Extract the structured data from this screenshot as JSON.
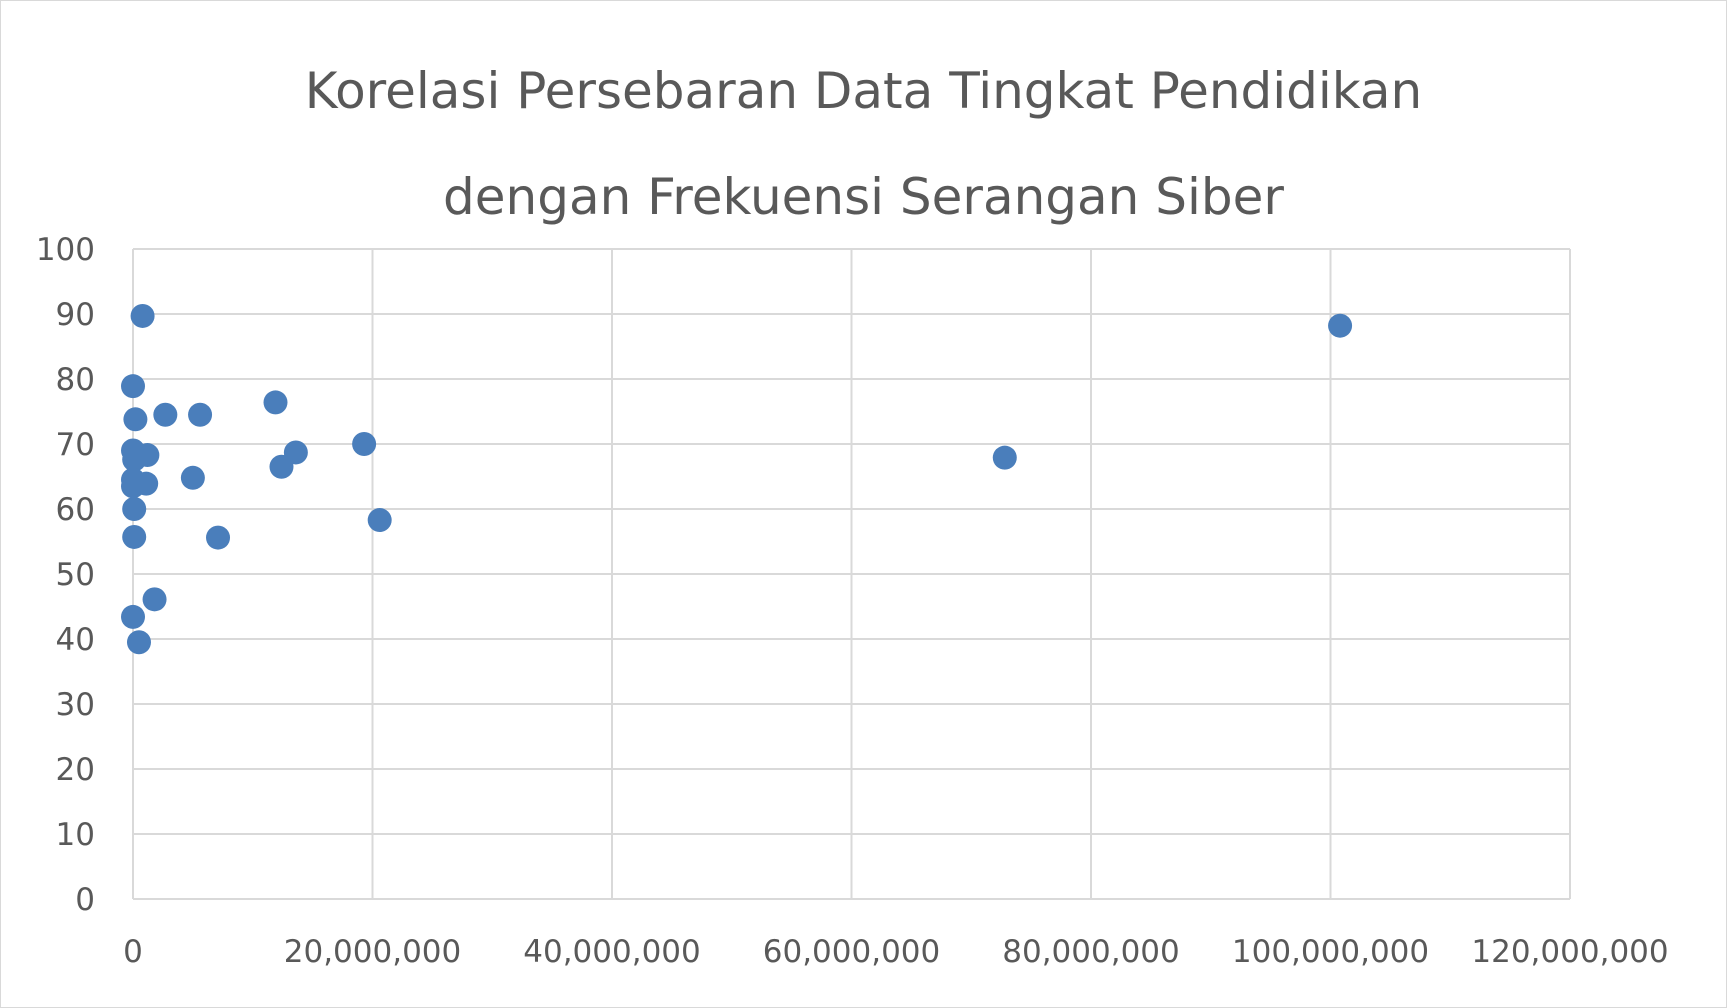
{
  "chart_data": {
    "type": "scatter",
    "title": "Korelasi Persebaran Data Tingkat Pendidikan dengan Frekuensi Serangan Siber",
    "title_lines": [
      "Korelasi Persebaran Data Tingkat Pendidikan",
      "dengan Frekuensi Serangan Siber"
    ],
    "xlabel": "",
    "ylabel": "",
    "xlim": [
      0,
      120000000
    ],
    "ylim": [
      0,
      100
    ],
    "x_ticks": [
      0,
      20000000,
      40000000,
      60000000,
      80000000,
      100000000,
      120000000
    ],
    "x_tick_labels": [
      "0",
      "20,000,000",
      "40,000,000",
      "60,000,000",
      "80,000,000",
      "100,000,000",
      "120,000,000"
    ],
    "y_ticks": [
      0,
      10,
      20,
      30,
      40,
      50,
      60,
      70,
      80,
      90,
      100
    ],
    "y_tick_labels": [
      "0",
      "10",
      "20",
      "30",
      "40",
      "50",
      "60",
      "70",
      "80",
      "90",
      "100"
    ],
    "grid": true,
    "legend": "none",
    "marker_color": "#4a7ebb",
    "gridline_color": "#d9d9d9",
    "points": [
      {
        "x": 800000,
        "y": 89.7
      },
      {
        "x": 0,
        "y": 78.9
      },
      {
        "x": 200000,
        "y": 73.8
      },
      {
        "x": 2700000,
        "y": 74.5
      },
      {
        "x": 5600000,
        "y": 74.5
      },
      {
        "x": 11900000,
        "y": 76.4
      },
      {
        "x": 0,
        "y": 69.0
      },
      {
        "x": 100000,
        "y": 67.6
      },
      {
        "x": 1200000,
        "y": 68.3
      },
      {
        "x": 13600000,
        "y": 68.7
      },
      {
        "x": 12400000,
        "y": 66.5
      },
      {
        "x": 19300000,
        "y": 70.0
      },
      {
        "x": 0,
        "y": 64.5
      },
      {
        "x": 0,
        "y": 63.5
      },
      {
        "x": 1100000,
        "y": 63.9
      },
      {
        "x": 5000000,
        "y": 64.8
      },
      {
        "x": 100000,
        "y": 60.0
      },
      {
        "x": 100000,
        "y": 55.7
      },
      {
        "x": 7100000,
        "y": 55.6
      },
      {
        "x": 20600000,
        "y": 58.3
      },
      {
        "x": 1800000,
        "y": 46.1
      },
      {
        "x": 0,
        "y": 43.4
      },
      {
        "x": 500000,
        "y": 39.5
      },
      {
        "x": 72800000,
        "y": 67.9
      },
      {
        "x": 100800000,
        "y": 88.2
      }
    ]
  }
}
